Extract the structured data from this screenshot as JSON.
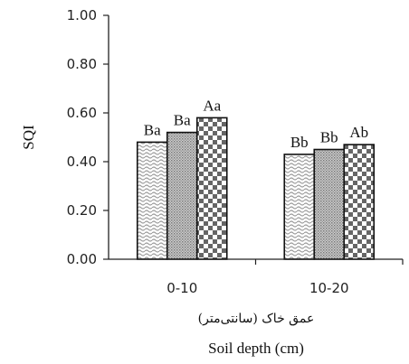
{
  "chart_data": {
    "type": "bar",
    "categories": [
      "0-10",
      "10-20"
    ],
    "series": [
      {
        "values": [
          0.48,
          0.43
        ],
        "pattern": "wave"
      },
      {
        "values": [
          0.52,
          0.45
        ],
        "pattern": "dots"
      },
      {
        "values": [
          0.58,
          0.47
        ],
        "pattern": "checker"
      }
    ],
    "data_labels": [
      [
        "Ba",
        "Ba",
        "Aa"
      ],
      [
        "Bb",
        "Bb",
        "Ab"
      ]
    ],
    "ylabel": "SQI",
    "xlabel_fa": "عمق خاک (سانتی‌متر)",
    "xlabel": "Soil depth (cm)",
    "ylim": [
      0,
      1.0
    ],
    "yticks": [
      "0.00",
      "0.20",
      "0.40",
      "0.60",
      "0.80",
      "1.00"
    ],
    "grid": false,
    "legend": "none"
  }
}
